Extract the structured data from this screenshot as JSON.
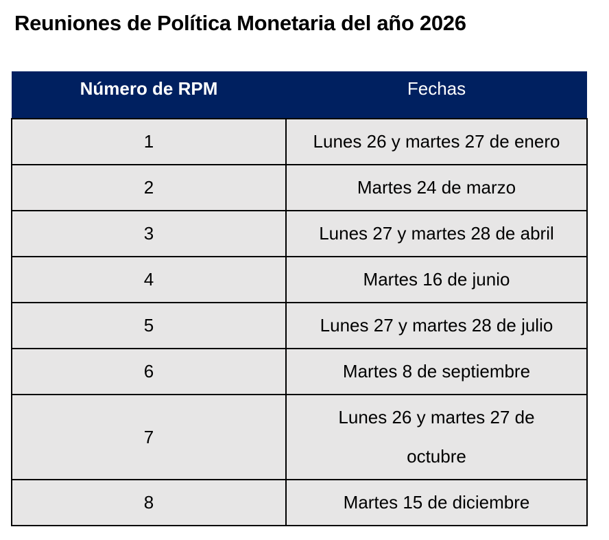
{
  "page": {
    "title": "Reuniones de Política Monetaria del año 2026"
  },
  "table": {
    "headers": {
      "rpm": "Número de RPM",
      "fechas": "Fechas"
    },
    "rows": [
      {
        "num": "1",
        "fecha": "Lunes 26 y martes 27 de enero"
      },
      {
        "num": "2",
        "fecha": "Martes 24 de marzo"
      },
      {
        "num": "3",
        "fecha": "Lunes 27 y martes 28 de abril"
      },
      {
        "num": "4",
        "fecha": "Martes 16 de junio"
      },
      {
        "num": "5",
        "fecha": "Lunes 27 y martes 28 de julio"
      },
      {
        "num": "6",
        "fecha": "Martes 8 de septiembre"
      },
      {
        "num": "7",
        "fecha": "Lunes 26 y martes 27 de octubre"
      },
      {
        "num": "8",
        "fecha": "Martes 15 de diciembre"
      }
    ],
    "colors": {
      "header_bg": "#002060",
      "header_text": "#ffffff",
      "row_bg": "#e7e6e6",
      "border": "#000000"
    }
  }
}
